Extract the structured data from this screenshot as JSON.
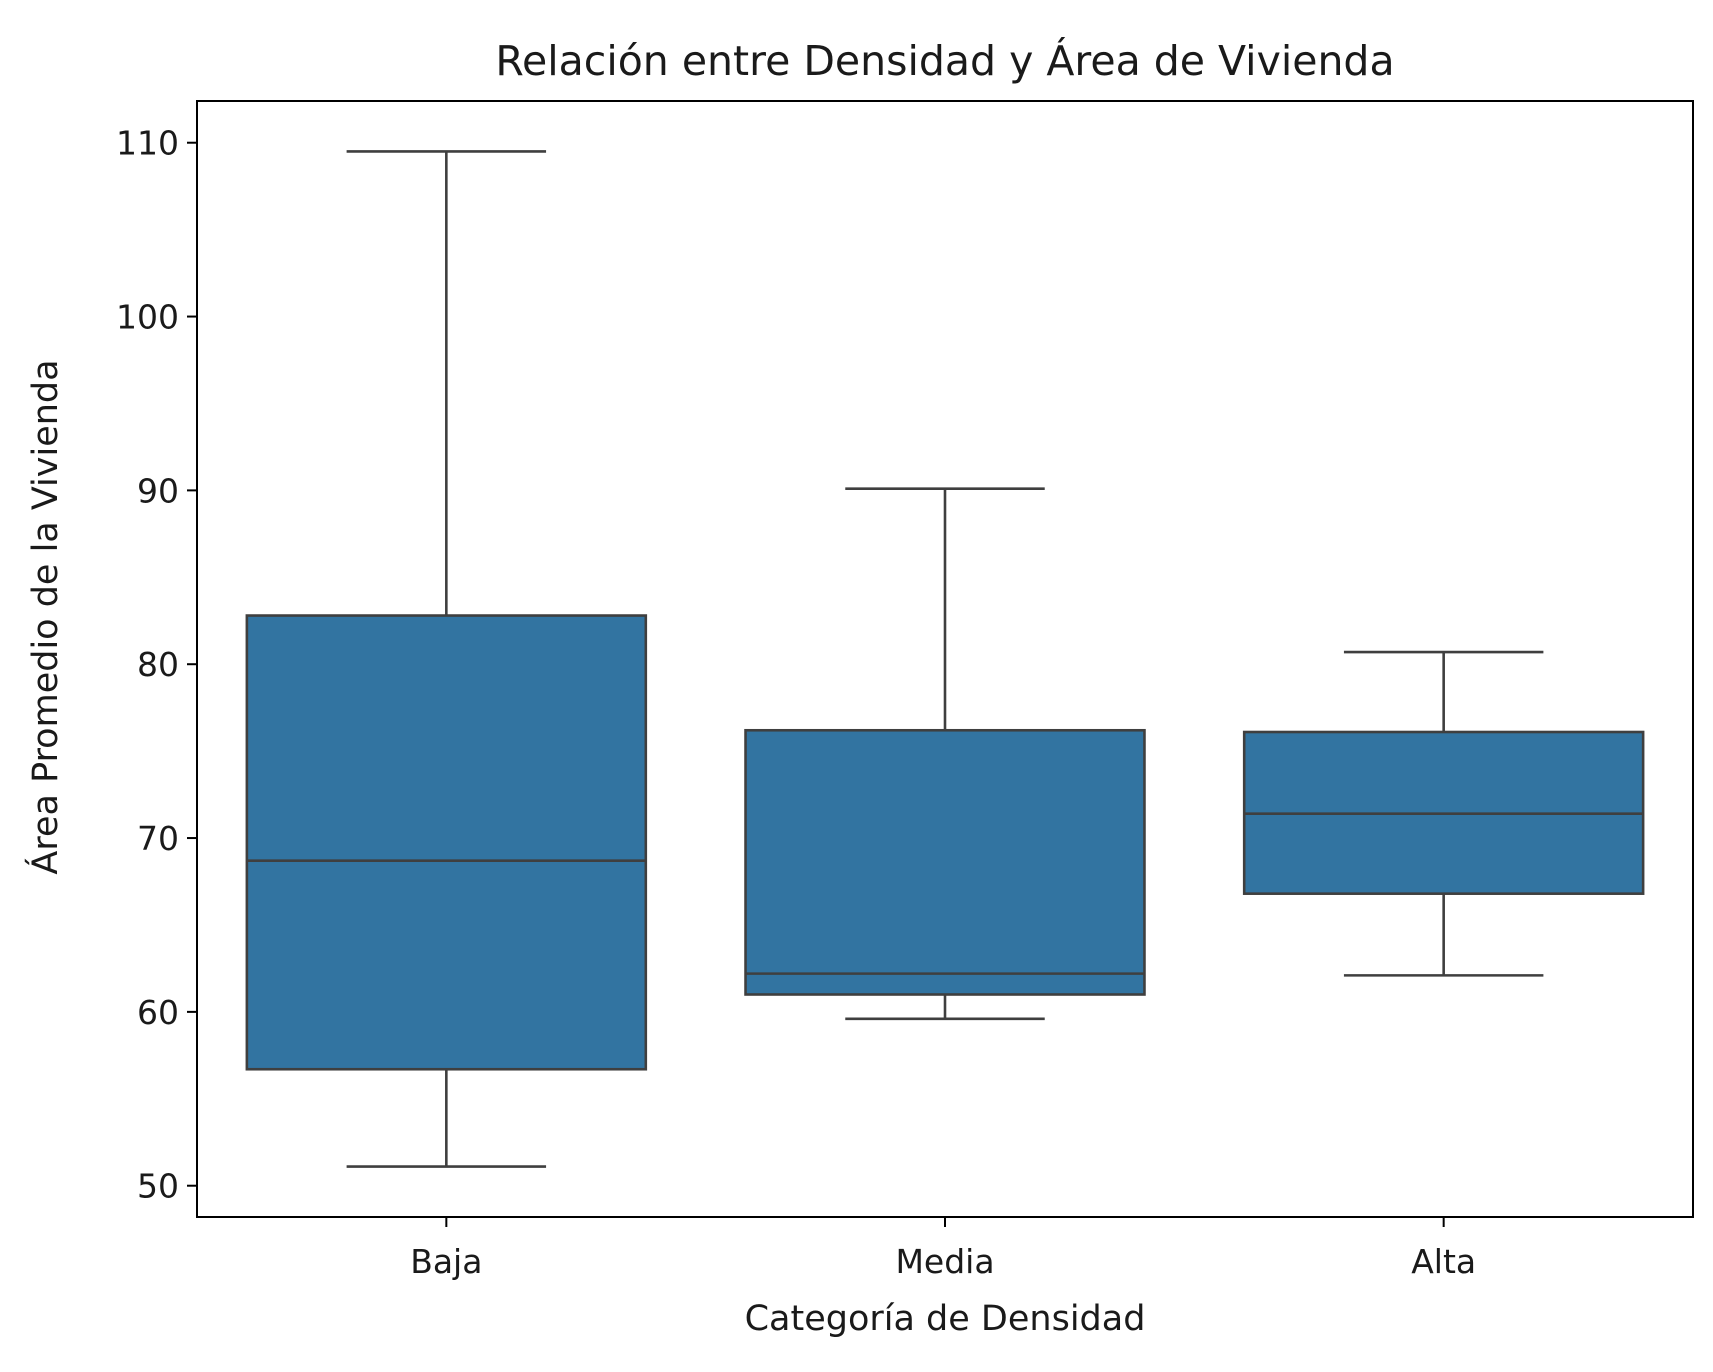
{
  "chart_data": {
    "type": "box",
    "title": "Relación entre Densidad y Área de Vivienda",
    "xlabel": "Categoría de Densidad",
    "ylabel": "Área Promedio de la Vivienda",
    "categories": [
      "Baja",
      "Media",
      "Alta"
    ],
    "boxes": [
      {
        "category": "Baja",
        "whisker_low": 51.1,
        "q1": 56.7,
        "median": 68.7,
        "q3": 82.8,
        "whisker_high": 109.5
      },
      {
        "category": "Media",
        "whisker_low": 59.6,
        "q1": 61.0,
        "median": 62.2,
        "q3": 76.2,
        "whisker_high": 90.1
      },
      {
        "category": "Alta",
        "whisker_low": 62.1,
        "q1": 66.8,
        "median": 71.4,
        "q3": 76.1,
        "whisker_high": 80.7
      }
    ],
    "ylim": [
      48.2,
      112.4
    ],
    "yticks": [
      50,
      60,
      70,
      80,
      90,
      100,
      110
    ],
    "ytick_labels": [
      "50",
      "60",
      "70",
      "80",
      "90",
      "100",
      "110"
    ],
    "grid": false,
    "colors": {
      "box_fill": "#3274a1",
      "line": "#3f3f3f",
      "axes": "#000000"
    }
  }
}
